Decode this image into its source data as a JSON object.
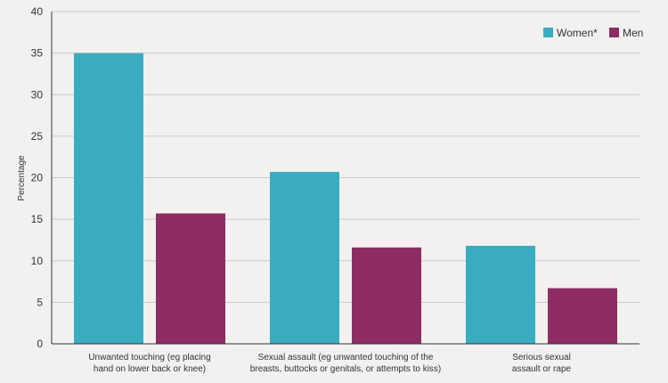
{
  "chart_data": {
    "type": "bar",
    "categories": [
      [
        "Unwanted touching (eg placing",
        "hand on lower back or knee)"
      ],
      [
        "Sexual assault (eg unwanted touching of the",
        "breasts, buttocks or genitals, or attempts to kiss)"
      ],
      [
        "Serious sexual",
        "assault or rape"
      ]
    ],
    "series": [
      {
        "name": "Women*",
        "color": "#3aacbf",
        "values": [
          35,
          20.7,
          11.8
        ]
      },
      {
        "name": "Men",
        "color": "#8e2c64",
        "values": [
          15.7,
          11.6,
          6.7
        ]
      }
    ],
    "ylabel": "Percentage",
    "xlabel": "",
    "ylim": [
      0,
      40
    ],
    "yticks": [
      0,
      5,
      10,
      15,
      20,
      25,
      30,
      35,
      40
    ],
    "grid": true,
    "legend_position": "top-right"
  }
}
